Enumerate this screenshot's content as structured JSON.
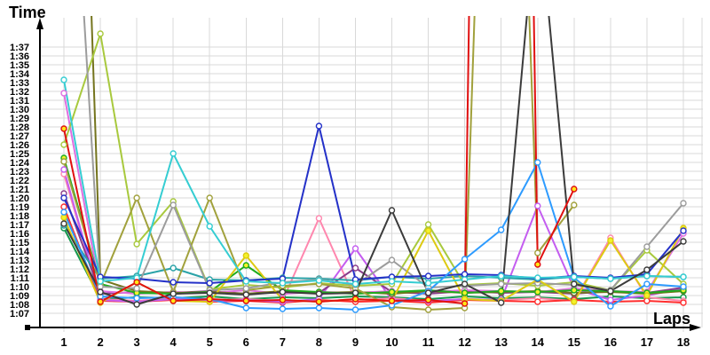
{
  "chart_data": {
    "type": "line",
    "title": "",
    "xlabel": "Laps",
    "ylabel": "Time",
    "x_ticks": [
      "1",
      "2",
      "3",
      "4",
      "5",
      "6",
      "7",
      "8",
      "9",
      "10",
      "11",
      "12",
      "13",
      "14",
      "15",
      "16",
      "17",
      "18"
    ],
    "y_ticks": [
      "1:07",
      "1:08",
      "1:09",
      "1:10",
      "1:11",
      "1:12",
      "1:13",
      "1:14",
      "1:15",
      "1:16",
      "1:17",
      "1:18",
      "1:19",
      "1:20",
      "1:21",
      "1:22",
      "1:23",
      "1:24",
      "1:25",
      "1:26",
      "1:27",
      "1:28",
      "1:29",
      "1:30",
      "1:31",
      "1:32",
      "1:33",
      "1:34",
      "1:35",
      "1:36",
      "1:37"
    ],
    "xlim_laps": [
      1,
      18
    ],
    "ylim_seconds": [
      67,
      97
    ],
    "grid": true,
    "legend": "none",
    "time_format": "m:ss",
    "series": [
      {
        "name": "seagreen",
        "color": "#14984e",
        "marker_fill": "#ffffff",
        "values": [
          76.6,
          68.6,
          68.8,
          68.7,
          68.9,
          68.6,
          68.8,
          68.7,
          68.9,
          68.8,
          68.6,
          68.9,
          68.7,
          68.8,
          68.6,
          68.9,
          68.7,
          68.8
        ]
      },
      {
        "name": "pink",
        "color": "#ff87ae",
        "marker_fill": "#ffffff",
        "values": [
          82.7,
          68.6,
          68.4,
          68.7,
          68.5,
          68.6,
          68.4,
          77.7,
          68.5,
          68.7,
          68.4,
          68.6,
          68.5,
          68.7,
          68.4,
          75.5,
          68.8,
          68.4
        ]
      },
      {
        "name": "red2",
        "color": "#ff2e2e",
        "marker_fill": "#ffffff",
        "values": [
          79.0,
          68.4,
          68.3,
          68.5,
          68.3,
          68.4,
          68.2,
          68.5,
          68.3,
          68.4,
          68.2,
          68.5,
          68.4,
          68.3,
          68.5,
          68.3,
          68.4,
          68.2
        ]
      },
      {
        "name": "violet",
        "color": "#c45df0",
        "marker_fill": "#ffffff",
        "values": [
          83.2,
          68.5,
          68.3,
          68.6,
          68.4,
          68.5,
          68.3,
          68.6,
          74.3,
          68.5,
          68.4,
          68.6,
          68.5,
          79.1,
          69.8,
          68.5,
          69.0,
          69.8
        ]
      },
      {
        "name": "purple",
        "color": "#8a3d8a",
        "marker_fill": "#ffffff",
        "values": [
          80.5,
          69.2,
          69.4,
          69.3,
          69.5,
          69.2,
          69.4,
          69.3,
          72.1,
          69.4,
          69.2,
          69.5,
          69.3,
          69.4,
          69.2,
          69.5,
          69.3,
          69.9
        ]
      },
      {
        "name": "orchid",
        "color": "#e06ee0",
        "marker_fill": "#ffffff",
        "values": [
          91.8,
          69.5,
          69.2,
          69.4,
          69.3,
          69.6,
          69.2,
          69.4,
          69.3,
          69.5,
          69.4,
          69.6,
          69.5,
          69.4,
          69.8,
          69.5,
          69.4,
          76.0
        ]
      },
      {
        "name": "olive",
        "color": "#74741d",
        "marker_fill": "#ffffff",
        "values": [
          193.0,
          70.8,
          69.5,
          69.3,
          69.4,
          69.2,
          69.5,
          69.3,
          69.4,
          69.2,
          69.5,
          69.3,
          69.4,
          69.5,
          69.3,
          69.4,
          69.2,
          69.5
        ]
      },
      {
        "name": "teal",
        "color": "#2ba3a8",
        "marker_fill": "#ffffff",
        "values": [
          76.9,
          70.9,
          71.2,
          72.1,
          70.8,
          70.7,
          71.0,
          70.9,
          70.7,
          71.1,
          70.9,
          71.2,
          71.0,
          70.8,
          71.1,
          70.9,
          71.2,
          71.1
        ]
      },
      {
        "name": "green",
        "color": "#1eab1e",
        "marker_fill": "#f3f32a",
        "values": [
          84.5,
          70.3,
          69.3,
          69.2,
          69.4,
          72.4,
          69.6,
          69.4,
          69.2,
          69.4,
          69.6,
          69.3,
          69.5,
          69.4,
          69.6,
          69.5,
          69.3,
          69.6
        ]
      },
      {
        "name": "yellowgreen",
        "color": "#a8c93d",
        "marker_fill": "#ffffff",
        "values": [
          86.0,
          98.5,
          74.8,
          79.6,
          69.7,
          70.2,
          69.9,
          70.4,
          70.1,
          70.3,
          77.0,
          70.2,
          70.4,
          70.1,
          70.5,
          69.6,
          74.1,
          70.3
        ]
      },
      {
        "name": "khaki",
        "color": "#a1a13c",
        "marker_fill": "#ffffff",
        "values": [
          84.1,
          70.2,
          80.0,
          69.4,
          80.0,
          69.6,
          70.1,
          70.3,
          69.8,
          67.7,
          67.4,
          67.6,
          190.0,
          73.8,
          79.2,
          null,
          null,
          null
        ]
      },
      {
        "name": "gray",
        "color": "#9c9c9c",
        "marker_fill": "#ffffff",
        "values": [
          138.0,
          70.0,
          69.8,
          79.2,
          69.6,
          69.8,
          70.5,
          70.8,
          70.2,
          73.0,
          69.9,
          70.1,
          70.3,
          70.4,
          70.2,
          69.6,
          74.5,
          79.4
        ]
      },
      {
        "name": "yellow",
        "color": "#ddca12",
        "marker_fill": "#f3f32a",
        "values": [
          77.8,
          68.2,
          70.5,
          68.4,
          68.3,
          73.5,
          68.5,
          68.3,
          68.6,
          68.4,
          76.3,
          68.6,
          68.4,
          70.8,
          68.3,
          75.2,
          69.0,
          76.6
        ]
      },
      {
        "name": "navy",
        "color": "#2431c8",
        "marker_fill": "#ffffff",
        "values": [
          80.0,
          71.1,
          70.9,
          70.5,
          70.4,
          70.7,
          70.9,
          88.1,
          70.8,
          71.1,
          71.2,
          71.4,
          71.3,
          70.9,
          71.2,
          71.0,
          71.4,
          76.3
        ]
      },
      {
        "name": "dodger",
        "color": "#2d9bff",
        "marker_fill": "#ffffff",
        "values": [
          78.4,
          68.9,
          68.7,
          68.8,
          68.6,
          67.6,
          67.5,
          67.6,
          67.4,
          67.9,
          69.5,
          73.1,
          76.4,
          84.0,
          71.0,
          67.8,
          70.3,
          70.0
        ]
      },
      {
        "name": "cyan",
        "color": "#35cdd2",
        "marker_fill": "#ffffff",
        "values": [
          93.3,
          70.6,
          71.0,
          85.0,
          76.8,
          70.6,
          70.4,
          70.7,
          70.3,
          70.6,
          70.4,
          70.8,
          71.2,
          71.0,
          71.1,
          70.9,
          71.2,
          71.1
        ]
      },
      {
        "name": "black",
        "color": "#3b3b3b",
        "marker_fill": "#ffffff",
        "values": [
          77.1,
          69.4,
          68.0,
          69.2,
          69.3,
          69.1,
          69.4,
          69.2,
          69.3,
          78.6,
          69.3,
          70.3,
          68.2,
          114.0,
          70.3,
          69.5,
          71.9,
          75.1
        ]
      },
      {
        "name": "red",
        "color": "#e01010",
        "marker_fill": "#ffe817",
        "values": [
          87.8,
          68.3,
          70.5,
          68.4,
          68.6,
          68.4,
          68.5,
          68.3,
          68.6,
          68.4,
          68.5,
          68.1,
          340.0,
          72.5,
          81.0,
          null,
          null,
          null
        ]
      }
    ]
  }
}
